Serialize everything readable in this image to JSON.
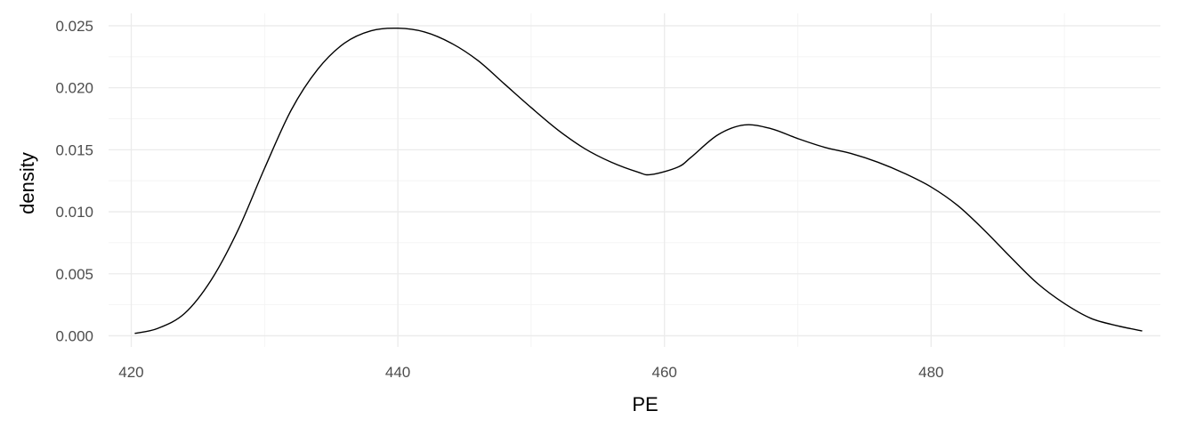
{
  "chart_data": {
    "type": "line",
    "title": "",
    "xlabel": "PE",
    "ylabel": "density",
    "xlim": [
      418.3,
      497.2
    ],
    "ylim": [
      -0.0009,
      0.026
    ],
    "x_ticks": [
      420,
      440,
      460,
      480
    ],
    "x_tick_labels": [
      "420",
      "440",
      "460",
      "480"
    ],
    "y_ticks": [
      0.0,
      0.005,
      0.01,
      0.015,
      0.02,
      0.025
    ],
    "y_tick_labels": [
      "0.000",
      "0.005",
      "0.010",
      "0.015",
      "0.020",
      "0.025"
    ],
    "x_minor_ticks": [
      430,
      450,
      470,
      490
    ],
    "y_minor_ticks": [
      0.0025,
      0.0075,
      0.0125,
      0.0175,
      0.0225
    ],
    "grid": true,
    "legend": "none",
    "line_color": "#000000",
    "series": [
      {
        "x": [
          420.3,
          422,
          424,
          426,
          428,
          430,
          432,
          434,
          436,
          438,
          440,
          442,
          444,
          446,
          448,
          450,
          452,
          454,
          456,
          458,
          459,
          461,
          462,
          464,
          466,
          468,
          470,
          472,
          474,
          476,
          478,
          480,
          482,
          484,
          486,
          488,
          490,
          492,
          494,
          495.8
        ],
        "y": [
          0.0002,
          0.0006,
          0.0018,
          0.0045,
          0.0085,
          0.0135,
          0.0182,
          0.0215,
          0.0236,
          0.0246,
          0.0248,
          0.0245,
          0.0236,
          0.0222,
          0.0203,
          0.0184,
          0.0166,
          0.0151,
          0.014,
          0.0132,
          0.013,
          0.0136,
          0.0144,
          0.0162,
          0.017,
          0.0167,
          0.0159,
          0.0152,
          0.0147,
          0.014,
          0.0131,
          0.012,
          0.0105,
          0.0085,
          0.0063,
          0.0042,
          0.0026,
          0.0014,
          0.0008,
          0.0004
        ]
      }
    ]
  }
}
